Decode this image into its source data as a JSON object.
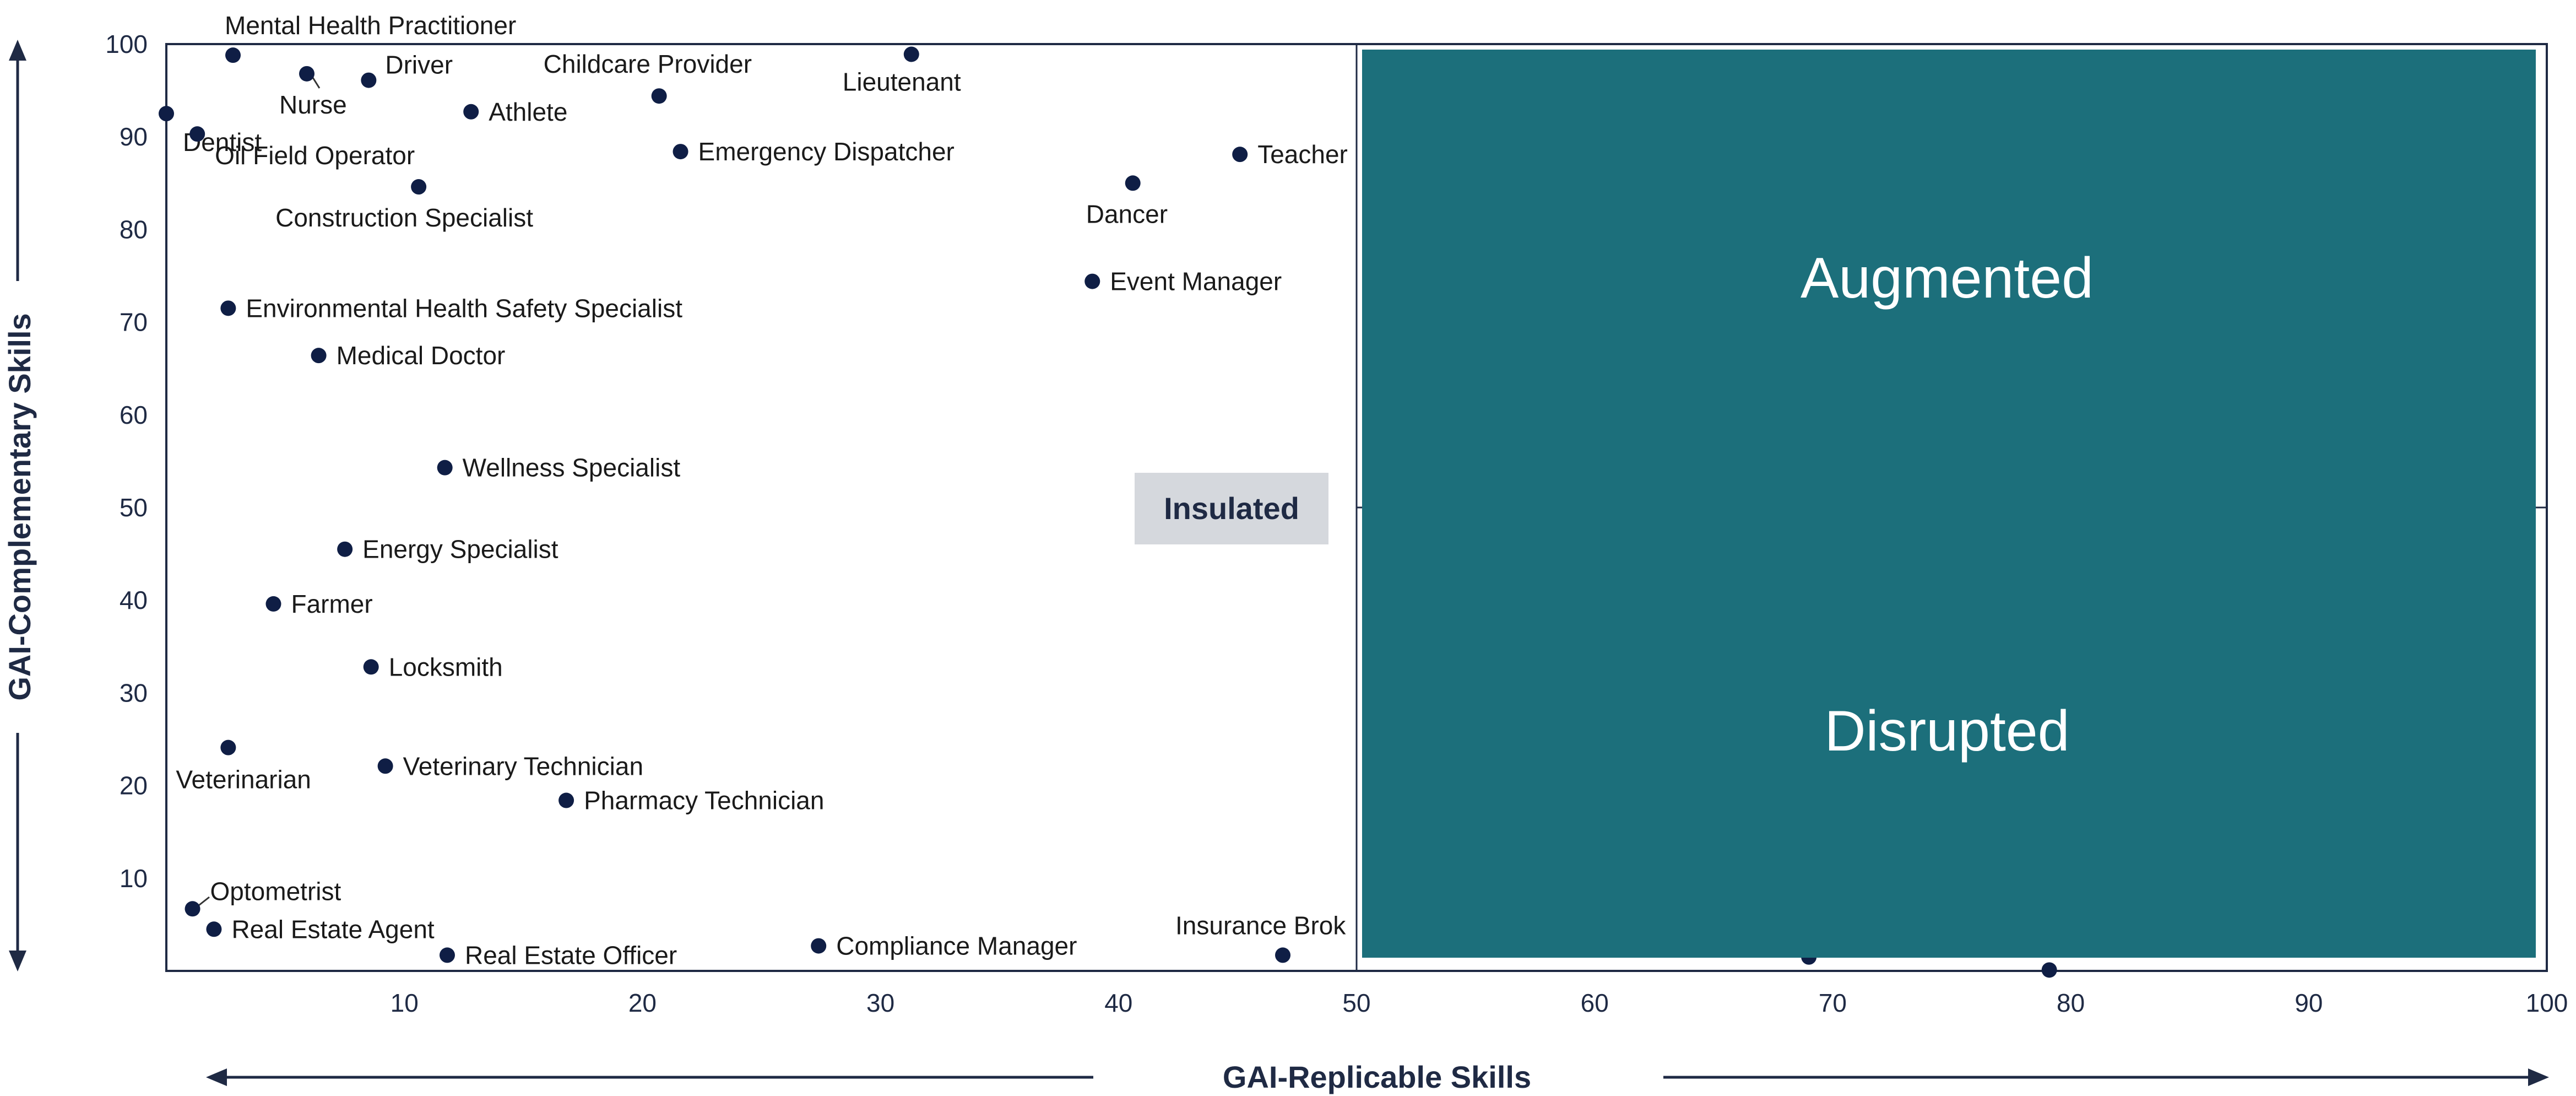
{
  "chart_data": {
    "type": "scatter",
    "xlabel": "GAI-Replicable Skills",
    "ylabel": "GAI-Complementary Skills",
    "xlim": [
      0,
      100
    ],
    "ylim": [
      0,
      100
    ],
    "x_ticks": [
      10,
      20,
      30,
      40,
      50,
      60,
      70,
      80,
      90,
      100
    ],
    "y_ticks": [
      10,
      20,
      30,
      40,
      50,
      60,
      70,
      80,
      90,
      100
    ],
    "quadrants": {
      "augmented": "Augmented",
      "disrupted": "Disrupted",
      "insulated": "Insulated"
    },
    "points": [
      {
        "label": "Mental Health Practitioner",
        "x": 2.8,
        "y": 98.8
      },
      {
        "label": "Dentist",
        "x": 0,
        "y": 92.5
      },
      {
        "label": "Nurse",
        "x": 5.9,
        "y": 96.8
      },
      {
        "label": "Driver",
        "x": 8.5,
        "y": 96.1
      },
      {
        "label": "Oil Field Operator",
        "x": 1.3,
        "y": 90.3
      },
      {
        "label": "Athlete",
        "x": 12.8,
        "y": 92.7
      },
      {
        "label": "Childcare Provider",
        "x": 20.7,
        "y": 94.4
      },
      {
        "label": "Lieutenant",
        "x": 31.3,
        "y": 98.9
      },
      {
        "label": "Emergency Dispatcher",
        "x": 21.6,
        "y": 88.4
      },
      {
        "label": "Teacher",
        "x": 45.1,
        "y": 88.1
      },
      {
        "label": "Dancer",
        "x": 40.6,
        "y": 85.0
      },
      {
        "label": "Construction Specialist",
        "x": 10.6,
        "y": 84.6
      },
      {
        "label": "Event Manager",
        "x": 38.9,
        "y": 74.4
      },
      {
        "label": "Environmental Health Safety Specialist",
        "x": 2.6,
        "y": 71.5
      },
      {
        "label": "Medical Doctor",
        "x": 6.4,
        "y": 66.4
      },
      {
        "label": "Wellness Specialist",
        "x": 11.7,
        "y": 54.3
      },
      {
        "label": "Energy Specialist",
        "x": 7.5,
        "y": 45.5
      },
      {
        "label": "Farmer",
        "x": 4.5,
        "y": 39.6
      },
      {
        "label": "Locksmith",
        "x": 8.6,
        "y": 32.8
      },
      {
        "label": "Veterinarian",
        "x": 2.6,
        "y": 24.1
      },
      {
        "label": "Veterinary Technician",
        "x": 9.2,
        "y": 22.1
      },
      {
        "label": "Pharmacy Technician",
        "x": 16.8,
        "y": 18.4
      },
      {
        "label": "Optometrist",
        "x": 1.1,
        "y": 6.7
      },
      {
        "label": "Real Estate Agent",
        "x": 2.0,
        "y": 4.5
      },
      {
        "label": "Real Estate Officer",
        "x": 11.8,
        "y": 1.7
      },
      {
        "label": "Compliance Manager",
        "x": 27.4,
        "y": 2.7
      },
      {
        "label": "Insurance Brok",
        "x": 46.9,
        "y": 1.7
      },
      {
        "label": "",
        "x": 69.0,
        "y": 1.5
      },
      {
        "label": "",
        "x": 79.1,
        "y": 0.1
      }
    ]
  },
  "colors": {
    "accent": "#1c6f7b",
    "marker": "#0f1e45",
    "text": "#1a1a1a",
    "axis": "#1f2a44",
    "insulated_box": "#d5d8dd"
  }
}
